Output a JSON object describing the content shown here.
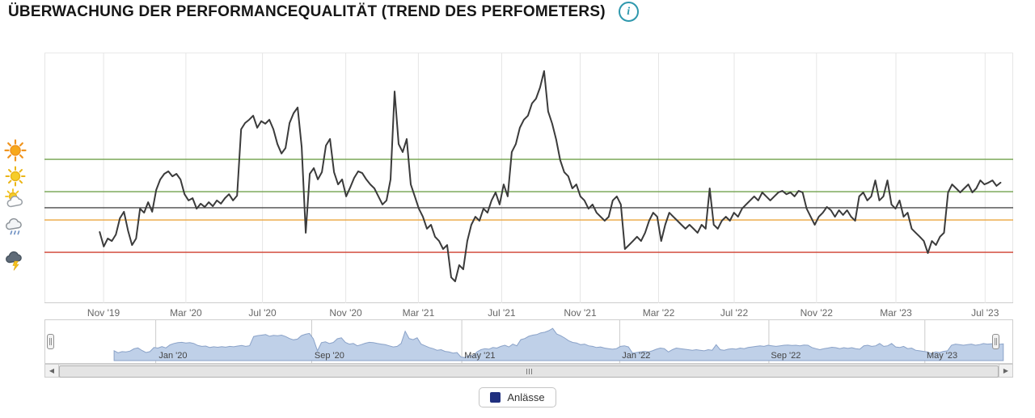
{
  "header": {
    "title": "ÜBERWACHUNG DER PERFORMANCEQUALITÄT (TREND DES PERFOMETERS)",
    "info_icon_glyph": "i"
  },
  "scrollbar": {
    "left_arrow": "◀",
    "right_arrow": "▶"
  },
  "chart_data": {
    "type": "line",
    "title": "Überwachung der Performancequalität (Trend des Perfometers)",
    "xlabel": "",
    "ylabel": "",
    "ylim": [
      0,
      100
    ],
    "grid": true,
    "legend_position": "bottom",
    "x_ticks": [
      {
        "label": "Nov '19",
        "pos_pct": 6.1
      },
      {
        "label": "Mar '20",
        "pos_pct": 14.6
      },
      {
        "label": "Jul '20",
        "pos_pct": 22.5
      },
      {
        "label": "Nov '20",
        "pos_pct": 31.1
      },
      {
        "label": "Mar '21",
        "pos_pct": 38.6
      },
      {
        "label": "Jul '21",
        "pos_pct": 47.2
      },
      {
        "label": "Nov '21",
        "pos_pct": 55.3
      },
      {
        "label": "Mar '22",
        "pos_pct": 63.4
      },
      {
        "label": "Jul '22",
        "pos_pct": 71.2
      },
      {
        "label": "Nov '22",
        "pos_pct": 79.7
      },
      {
        "label": "Mar '23",
        "pos_pct": 87.9
      },
      {
        "label": "Jul '23",
        "pos_pct": 97.1
      }
    ],
    "reference_lines": [
      {
        "value": 57.4,
        "color": "#72a24c"
      },
      {
        "value": 44.5,
        "color": "#72a24c"
      },
      {
        "value": 38.1,
        "color": "#4a4a4a"
      },
      {
        "value": 33.2,
        "color": "#eca63f"
      },
      {
        "value": 20.3,
        "color": "#cf3f2f"
      }
    ],
    "weather_scale_icons": [
      {
        "name": "sun-bright-icon",
        "value": 61
      },
      {
        "name": "sun-icon",
        "value": 50.5
      },
      {
        "name": "sun-behind-cloud-icon",
        "value": 41.5
      },
      {
        "name": "rain-cloud-icon",
        "value": 31
      },
      {
        "name": "storm-cloud-icon",
        "value": 17
      }
    ],
    "series": [
      {
        "name": "Anlässe",
        "color": "#3b3b3b",
        "x_start_pct": 5.7,
        "x_end_pct": 98.7,
        "values": [
          28.4,
          22.6,
          25.8,
          24.8,
          27.4,
          33.9,
          36.5,
          29.0,
          23.2,
          25.8,
          37.7,
          36.1,
          40.3,
          36.5,
          45.2,
          49.4,
          51.6,
          52.6,
          50.6,
          51.6,
          49.4,
          43.5,
          41.0,
          41.9,
          37.7,
          39.7,
          38.4,
          40.3,
          38.7,
          41.0,
          39.7,
          41.9,
          43.5,
          41.0,
          42.9,
          69.4,
          71.9,
          73.2,
          74.8,
          70.0,
          72.6,
          71.6,
          73.2,
          69.4,
          63.5,
          59.7,
          61.9,
          71.9,
          75.8,
          78.1,
          62.3,
          28.1,
          51.6,
          53.9,
          49.4,
          52.3,
          62.9,
          65.5,
          52.3,
          47.4,
          49.4,
          42.6,
          46.1,
          50.0,
          52.6,
          51.9,
          49.4,
          47.4,
          45.8,
          42.6,
          39.4,
          41.0,
          49.4,
          84.5,
          63.5,
          60.3,
          65.5,
          47.4,
          42.6,
          37.7,
          34.5,
          29.7,
          31.3,
          26.5,
          24.8,
          21.6,
          23.2,
          10.3,
          8.7,
          15.2,
          13.5,
          24.8,
          31.3,
          34.5,
          32.9,
          37.7,
          36.1,
          41.0,
          44.2,
          39.4,
          47.4,
          42.6,
          60.3,
          63.5,
          70.0,
          73.2,
          74.8,
          79.7,
          81.6,
          86.1,
          92.6,
          76.5,
          71.6,
          65.2,
          57.1,
          52.3,
          50.6,
          45.8,
          47.4,
          42.6,
          41.0,
          37.7,
          39.4,
          36.1,
          34.5,
          32.9,
          34.5,
          41.0,
          42.6,
          39.4,
          21.6,
          23.2,
          24.8,
          26.5,
          24.8,
          28.1,
          32.9,
          36.1,
          34.5,
          24.8,
          31.3,
          36.1,
          34.5,
          32.9,
          31.3,
          29.7,
          31.3,
          29.7,
          28.1,
          31.3,
          29.7,
          45.8,
          31.3,
          29.7,
          32.9,
          34.5,
          32.9,
          36.1,
          34.5,
          37.7,
          39.4,
          41.0,
          42.6,
          41.0,
          44.2,
          42.6,
          41.0,
          42.6,
          44.2,
          44.8,
          43.5,
          44.2,
          42.6,
          44.8,
          44.2,
          37.7,
          34.5,
          31.3,
          34.5,
          36.1,
          38.4,
          37.1,
          34.5,
          37.1,
          35.2,
          37.1,
          34.5,
          32.9,
          42.6,
          44.2,
          41.0,
          42.6,
          49.0,
          41.0,
          42.6,
          49.0,
          39.4,
          37.7,
          41.0,
          34.5,
          36.1,
          29.7,
          28.1,
          26.5,
          24.8,
          20.0,
          24.8,
          23.2,
          26.5,
          28.1,
          44.2,
          47.4,
          45.8,
          44.2,
          45.8,
          47.4,
          44.2,
          45.8,
          49.0,
          47.4,
          48.1,
          49.0,
          46.8,
          48.1
        ]
      }
    ],
    "navigator": {
      "area_fill": "#bfd0e8",
      "area_line": "#8aa2c8",
      "x_start_pct": 7.1,
      "x_end_pct": 98.9,
      "ticks": [
        {
          "label": "Jan '20",
          "pos_pct": 11.4
        },
        {
          "label": "Sep '20",
          "pos_pct": 27.5
        },
        {
          "label": "May '21",
          "pos_pct": 43.0
        },
        {
          "label": "Jan '22",
          "pos_pct": 59.3
        },
        {
          "label": "Sep '22",
          "pos_pct": 74.7
        },
        {
          "label": "May '23",
          "pos_pct": 90.8
        }
      ]
    },
    "legend": [
      {
        "label": "Anlässe",
        "color": "#20307f"
      }
    ]
  }
}
